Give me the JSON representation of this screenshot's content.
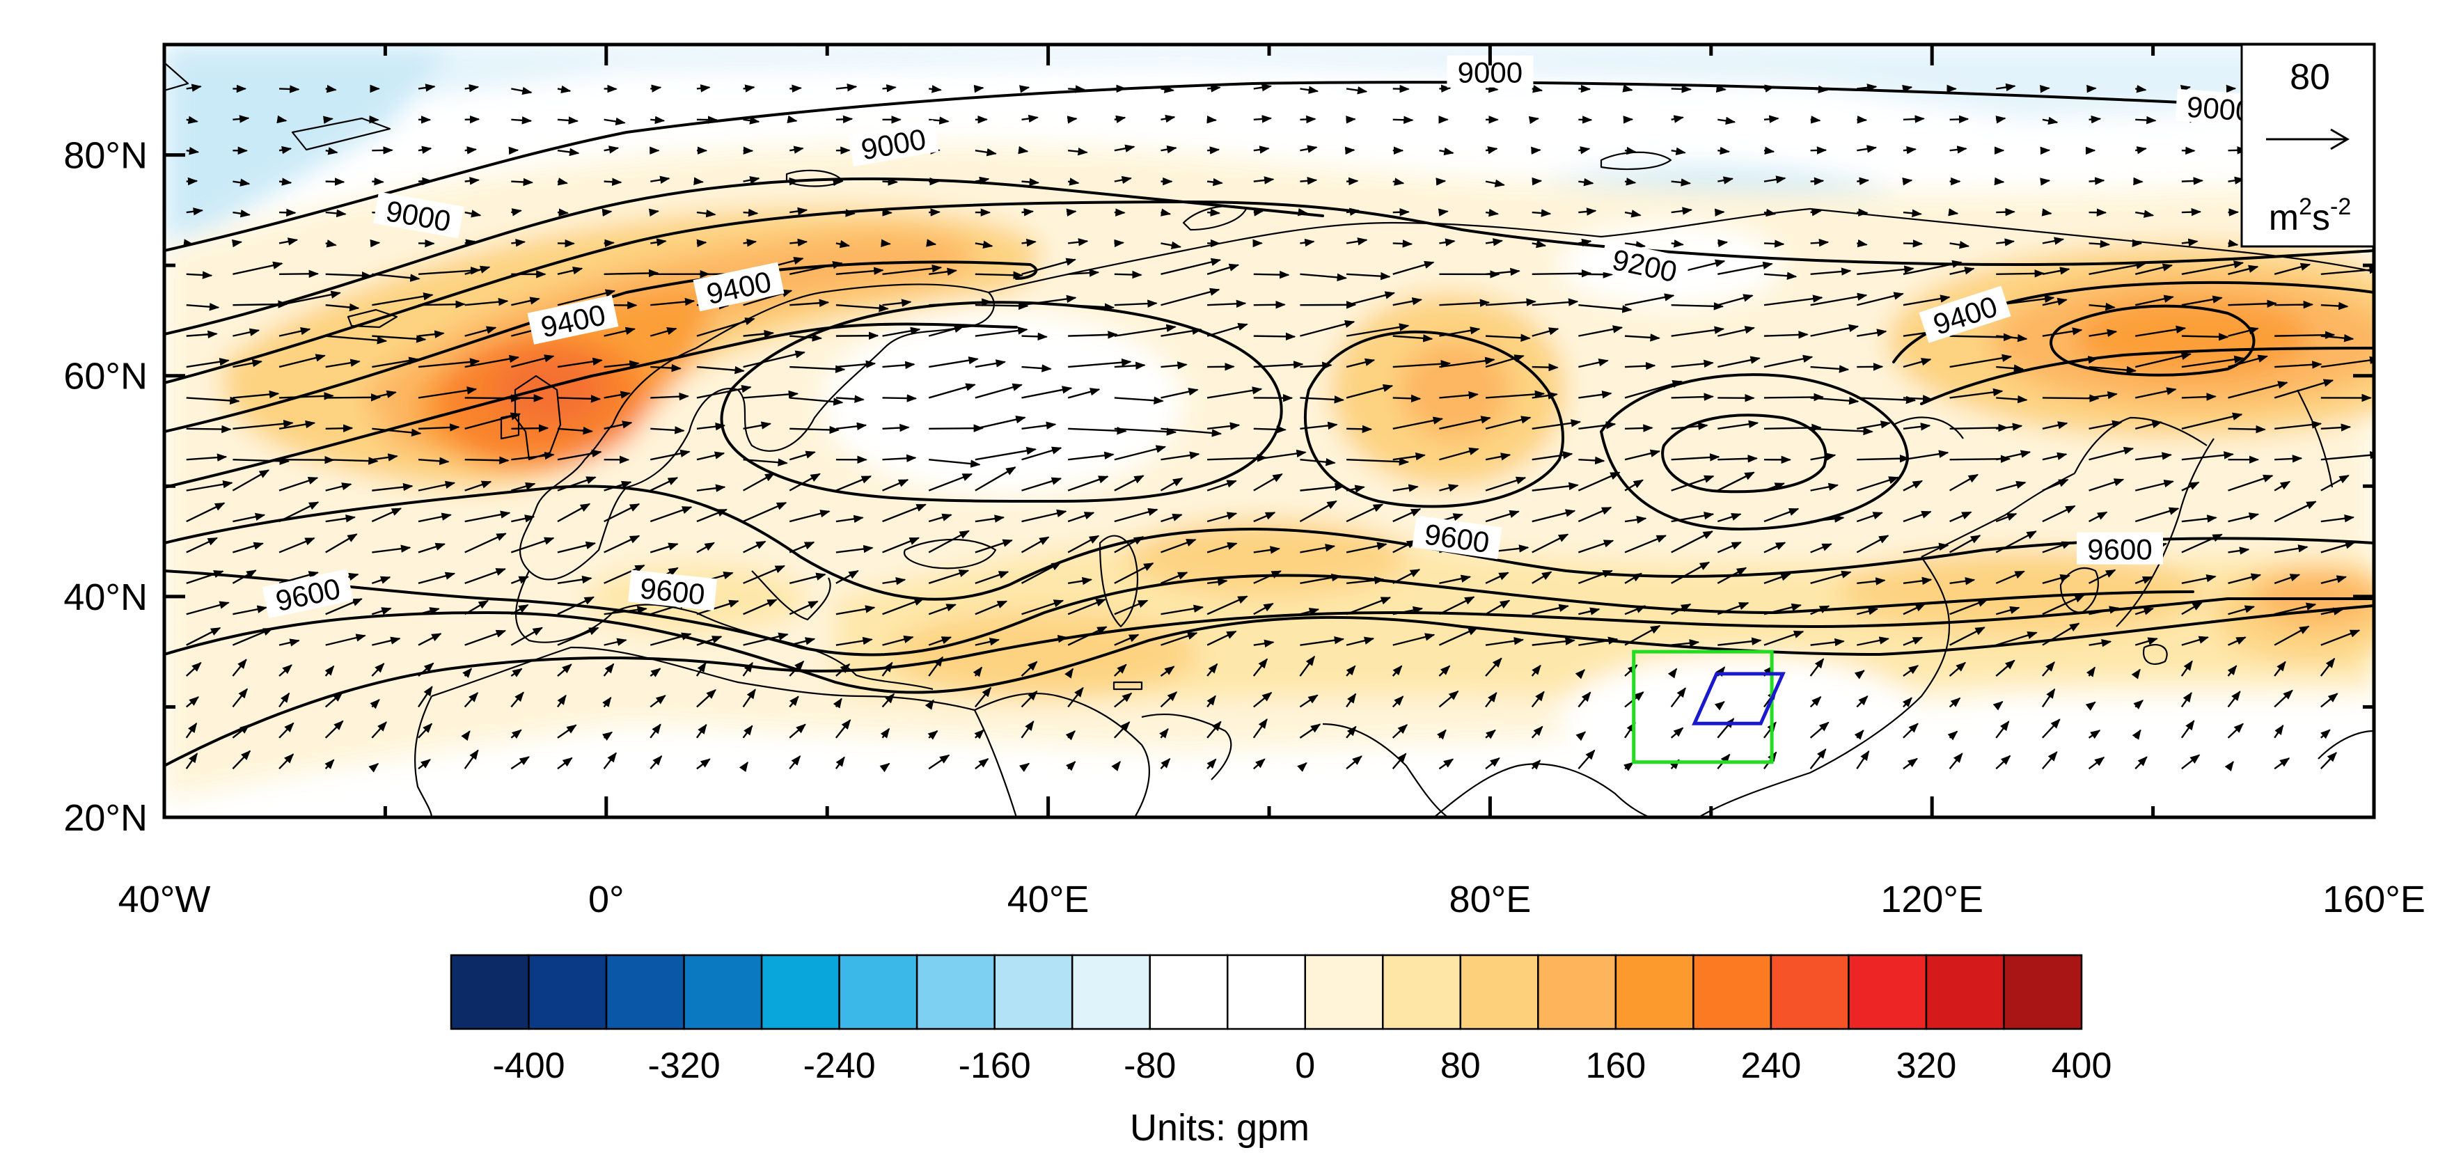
{
  "map": {
    "lon_range": [
      -40,
      160
    ],
    "lat_range": [
      20,
      90
    ],
    "x_ticks": [
      {
        "lon": -40,
        "label": "40°W"
      },
      {
        "lon": 0,
        "label": "0°"
      },
      {
        "lon": 40,
        "label": "40°E"
      },
      {
        "lon": 80,
        "label": "80°E"
      },
      {
        "lon": 120,
        "label": "120°E"
      },
      {
        "lon": 160,
        "label": "160°E"
      }
    ],
    "y_ticks": [
      {
        "lat": 20,
        "label": "20°N"
      },
      {
        "lat": 40,
        "label": "40°N"
      },
      {
        "lat": 60,
        "label": "60°N"
      },
      {
        "lat": 80,
        "label": "80°N"
      }
    ],
    "contour_labels": [
      {
        "text": "9000",
        "lon": 26,
        "lat": 81,
        "rot": -10
      },
      {
        "text": "9000",
        "lon": -17,
        "lat": 74.5,
        "rot": 10
      },
      {
        "text": "9000",
        "lon": 80,
        "lat": 87.5,
        "rot": 0
      },
      {
        "text": "9000",
        "lon": 146,
        "lat": 84.2,
        "rot": 4
      },
      {
        "text": "9200",
        "lon": 94,
        "lat": 70,
        "rot": 12
      },
      {
        "text": "9400",
        "lon": -3,
        "lat": 65,
        "rot": -12
      },
      {
        "text": "9400",
        "lon": 12,
        "lat": 68,
        "rot": -12
      },
      {
        "text": "9400",
        "lon": 123,
        "lat": 65.5,
        "rot": -18
      },
      {
        "text": "9600",
        "lon": -27,
        "lat": 40.2,
        "rot": -12
      },
      {
        "text": "9600",
        "lon": 6,
        "lat": 40.5,
        "rot": 6
      },
      {
        "text": "9600",
        "lon": 77,
        "lat": 45.3,
        "rot": 8
      },
      {
        "text": "9600",
        "lon": 137,
        "lat": 44.3,
        "rot": 0
      }
    ],
    "region_box": {
      "lon": [
        93,
        105.5
      ],
      "lat": [
        25,
        35
      ],
      "color": "#22dd22"
    },
    "region_polygon": {
      "points": [
        [
          100.5,
          33
        ],
        [
          106.5,
          33
        ],
        [
          104.5,
          28.5
        ],
        [
          98.5,
          28.5
        ]
      ],
      "color": "#1a1acc"
    }
  },
  "reference_vector": {
    "value": "80",
    "units": "m²s⁻²",
    "units_base": "m",
    "units_sup1": "2",
    "units_mid": "s",
    "units_sup2": "-2"
  },
  "colorbar": {
    "colors": [
      "#0b2a66",
      "#0a3a86",
      "#0a57a8",
      "#0b78c2",
      "#09a6dc",
      "#3cb8e8",
      "#7dd0f2",
      "#b1e2f6",
      "#dff3fa",
      "#ffffff",
      "#ffffff",
      "#fff4d8",
      "#fee6a6",
      "#fdd17c",
      "#fdb45a",
      "#fc9a2e",
      "#fb7a22",
      "#f65428",
      "#ee2525",
      "#d41a1a",
      "#a91414"
    ],
    "tick_labels": [
      "-400",
      "-320",
      "-240",
      "-160",
      "-80",
      "0",
      "80",
      "160",
      "240",
      "320",
      "400"
    ],
    "units_label": "Units: gpm"
  }
}
